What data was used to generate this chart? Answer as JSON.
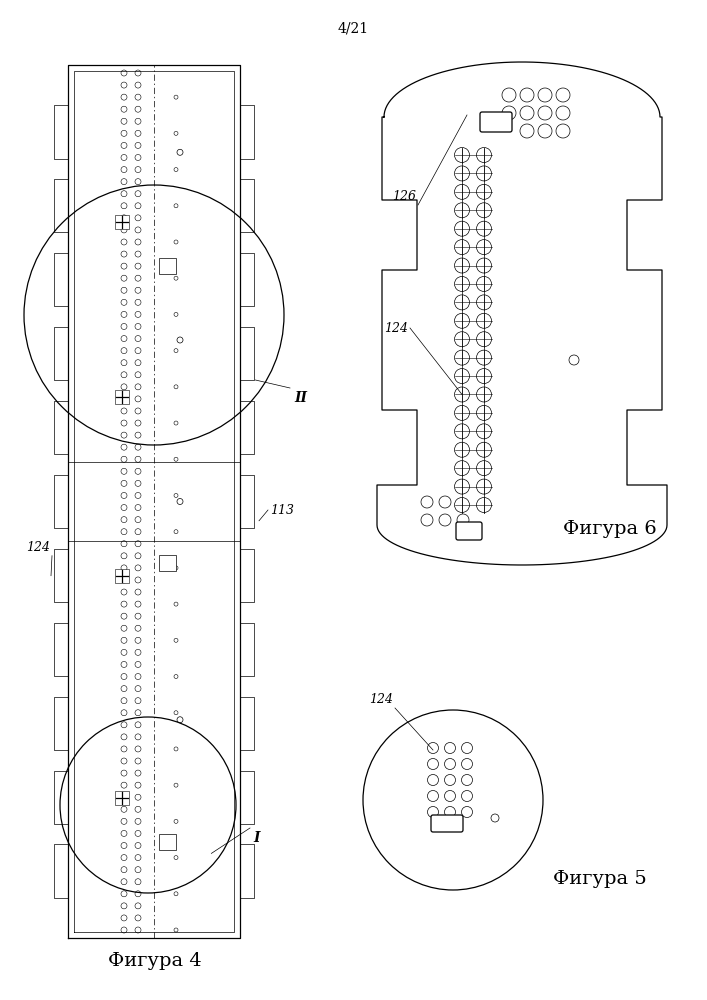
{
  "page_label": "4/21",
  "fig4_label": "Фигура 4",
  "fig5_label": "Фигура 5",
  "fig6_label": "Фигура 6",
  "ref_124_a": "124",
  "ref_124_b": "124",
  "ref_126": "126",
  "ref_113": "113",
  "ref_I": "I",
  "ref_II": "II",
  "line_color": "#000000",
  "bg_color": "#ffffff"
}
